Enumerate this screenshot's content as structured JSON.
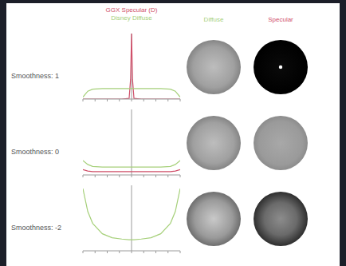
{
  "header": {
    "columns": [
      "Diffuse",
      "Specular"
    ]
  },
  "chart_data": [
    {
      "type": "line",
      "title": "Smoothness: 1",
      "legend": "top",
      "tick_labels": false,
      "xlim": [
        -1,
        1
      ],
      "ylim": [
        0,
        1
      ],
      "xticks": [
        -1,
        -0.75,
        -0.5,
        -0.25,
        0,
        0.25,
        0.5,
        0.75,
        1
      ],
      "x": [
        -1,
        -0.9,
        -0.8,
        -0.6,
        -0.4,
        -0.2,
        -0.05,
        -0.02,
        0,
        0.02,
        0.05,
        0.2,
        0.4,
        0.6,
        0.8,
        0.9,
        1
      ],
      "series": [
        {
          "name": "GGX Specular (D)",
          "color": "#d0506a",
          "values": [
            0,
            0,
            0,
            0,
            0,
            0,
            0.01,
            0.3,
            1,
            0.3,
            0.01,
            0,
            0,
            0,
            0,
            0,
            0
          ]
        },
        {
          "name": "Disney Diffuse",
          "color": "#a6d07a",
          "values": [
            0.03,
            0.12,
            0.15,
            0.16,
            0.16,
            0.16,
            0.16,
            0.16,
            0.16,
            0.16,
            0.16,
            0.16,
            0.16,
            0.16,
            0.15,
            0.12,
            0.03
          ]
        }
      ]
    },
    {
      "type": "line",
      "title": "Smoothness: 0",
      "tick_labels": false,
      "xlim": [
        -1,
        1
      ],
      "ylim": [
        0,
        1
      ],
      "xticks": [
        -1,
        -0.75,
        -0.5,
        -0.25,
        0,
        0.25,
        0.5,
        0.75,
        1
      ],
      "x": [
        -1,
        -0.9,
        -0.8,
        -0.6,
        -0.4,
        -0.2,
        -0.05,
        -0.02,
        0,
        0.02,
        0.05,
        0.2,
        0.4,
        0.6,
        0.8,
        0.9,
        1
      ],
      "series": [
        {
          "name": "GGX Specular (D)",
          "color": "#d0506a",
          "values": [
            0.08,
            0.06,
            0.05,
            0.05,
            0.05,
            0.05,
            0.05,
            0.05,
            0.05,
            0.05,
            0.05,
            0.05,
            0.05,
            0.05,
            0.05,
            0.06,
            0.08
          ]
        },
        {
          "name": "Disney Diffuse",
          "color": "#a6d07a",
          "values": [
            0.22,
            0.16,
            0.13,
            0.12,
            0.12,
            0.12,
            0.12,
            0.12,
            0.12,
            0.12,
            0.12,
            0.12,
            0.12,
            0.12,
            0.13,
            0.16,
            0.22
          ]
        }
      ]
    },
    {
      "type": "line",
      "title": "Smoothness: -2",
      "tick_labels": false,
      "xlim": [
        -1,
        1
      ],
      "ylim": [
        0,
        1
      ],
      "xticks": [
        -1,
        -0.75,
        -0.5,
        -0.25,
        0,
        0.25,
        0.5,
        0.75,
        1
      ],
      "x": [
        -1,
        -0.9,
        -0.8,
        -0.6,
        -0.4,
        -0.2,
        -0.05,
        -0.02,
        0,
        0.02,
        0.05,
        0.2,
        0.4,
        0.6,
        0.8,
        0.9,
        1
      ],
      "series": [
        {
          "name": "Disney Diffuse",
          "color": "#a6d07a",
          "values": [
            0.95,
            0.6,
            0.42,
            0.26,
            0.2,
            0.18,
            0.17,
            0.17,
            0.17,
            0.17,
            0.17,
            0.18,
            0.2,
            0.26,
            0.42,
            0.6,
            0.95
          ]
        }
      ]
    }
  ]
}
